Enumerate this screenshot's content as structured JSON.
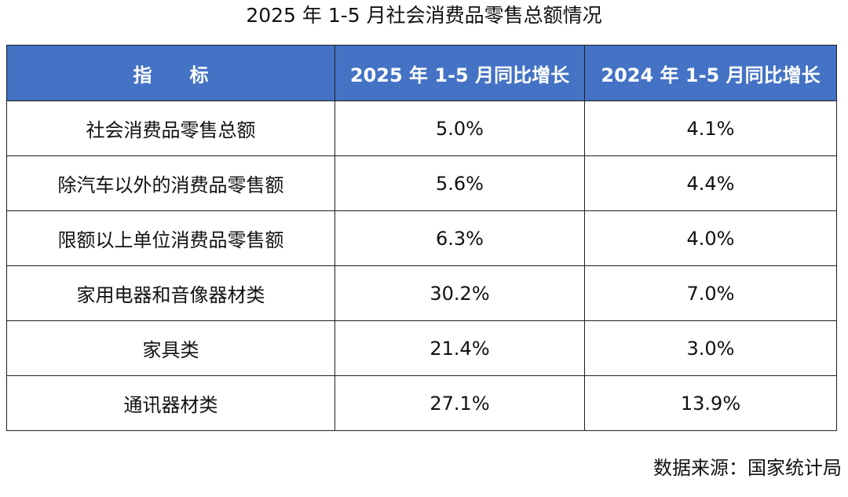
{
  "chart_data": {
    "type": "table",
    "title": "2025 年 1-5 月社会消费品零售总额情况",
    "header_color": "#4472c4",
    "columns": [
      "指　　标",
      "2025 年 1-5 月同比增长",
      "2024 年 1-5 月同比增长"
    ],
    "rows": [
      {
        "indicator": "社会消费品零售总额",
        "y2025": "5.0%",
        "y2024": "4.1%"
      },
      {
        "indicator": "除汽车以外的消费品零售额",
        "y2025": "5.6%",
        "y2024": "4.4%"
      },
      {
        "indicator": "限额以上单位消费品零售额",
        "y2025": "6.3%",
        "y2024": "4.0%"
      },
      {
        "indicator": "家用电器和音像器材类",
        "y2025": "30.2%",
        "y2024": "7.0%"
      },
      {
        "indicator": "家具类",
        "y2025": "21.4%",
        "y2024": "3.0%"
      },
      {
        "indicator": "通讯器材类",
        "y2025": "27.1%",
        "y2024": "13.9%"
      }
    ],
    "source": "数据来源：国家统计局"
  }
}
